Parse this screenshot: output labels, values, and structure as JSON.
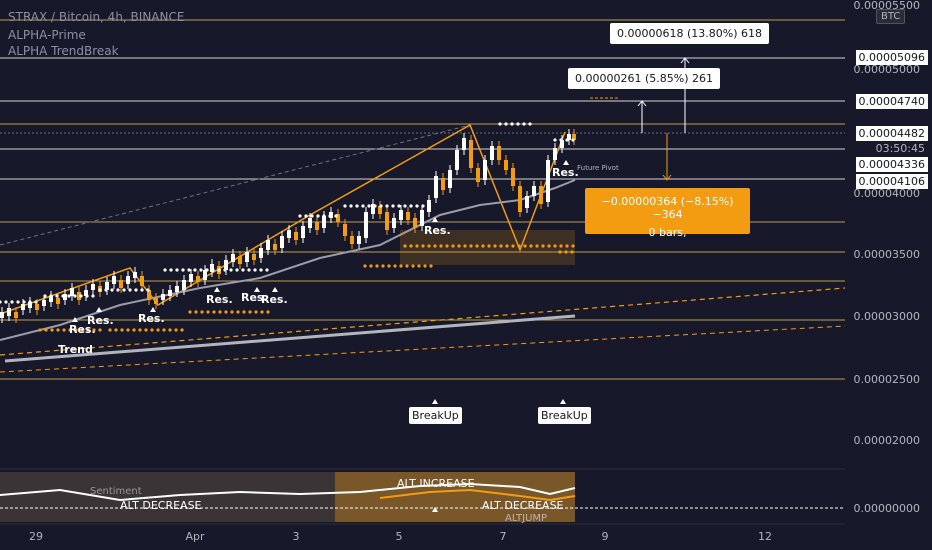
{
  "header": {
    "title": "STRAX / Bitcoin, 4h, BINANCE",
    "indicator_1": "ALPHA-Prime",
    "indicator_2": "ALPHA TrendBreak"
  },
  "currency_button": "BTC",
  "price_axis": {
    "ticks": [
      "0.00005500",
      "0.00005000",
      "0.00004000",
      "0.00003500",
      "0.00003000",
      "0.00002500",
      "0.00002000",
      "0.00000000"
    ]
  },
  "price_tags": {
    "tag_1": "0.00005096",
    "tag_2": "0.00004740",
    "tag_3": "0.00004482",
    "countdown": "03:50:45",
    "tag_4": "0.00004336",
    "tag_5": "0.00004106"
  },
  "time_axis": {
    "ticks": [
      "29",
      "Apr",
      "3",
      "5",
      "7",
      "9",
      "12"
    ]
  },
  "measure_tooltips": {
    "upper": "0.00000618 (13.80%) 618",
    "middle": "0.00000261 (5.85%) 261",
    "lower_line1": "−0.00000364 (−8.15%) −364",
    "lower_line2": "0 bars,"
  },
  "chart_labels": {
    "res": "Res.",
    "trend": "Trend",
    "breakup": "BreakUp",
    "future_pivot": "Future Pivot",
    "alt_increase": "ALT INCREASE",
    "alt_decrease": "ALT DECREASE",
    "alt_jump": "ALTJUMP",
    "sentiment": "Sentiment"
  },
  "colors": {
    "background": "#17182a",
    "bull_candle": "#ffffff",
    "bear_candle": "#f39c12",
    "accent_orange": "#f39c12",
    "ma_line": "#9a9cab"
  }
}
